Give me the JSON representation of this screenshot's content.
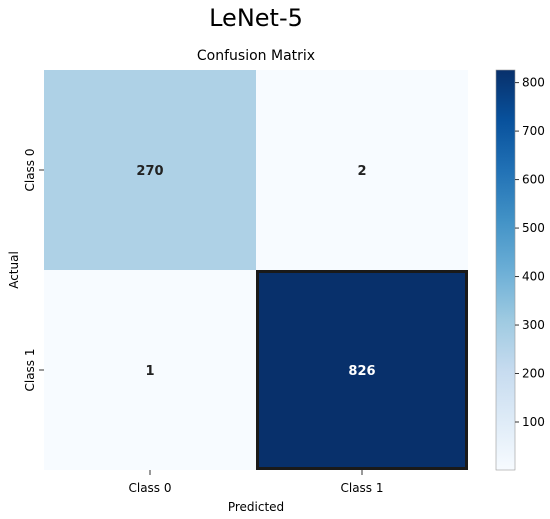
{
  "figure": {
    "suptitle": "LeNet-5"
  },
  "chart_data": {
    "type": "heatmap",
    "title": "Confusion Matrix",
    "xlabel": "Predicted",
    "ylabel": "Actual",
    "x_categories": [
      "Class 0",
      "Class 1"
    ],
    "y_categories": [
      "Class 0",
      "Class 1"
    ],
    "values": [
      [
        270,
        2
      ],
      [
        1,
        826
      ]
    ],
    "colormap": "Blues",
    "colorbar": {
      "min": 1,
      "max": 826,
      "ticks": [
        100,
        200,
        300,
        400,
        500,
        600,
        700,
        800
      ]
    },
    "highlighted_cell": [
      1,
      1
    ],
    "highlight_color": "#1a1a1a"
  }
}
